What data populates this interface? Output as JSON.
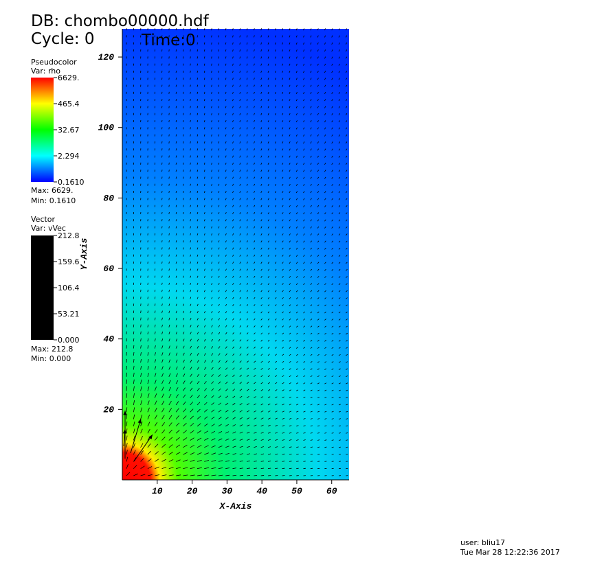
{
  "header": {
    "db": "DB: chombo00000.hdf",
    "cycle": "Cycle: 0",
    "time": "Time:0"
  },
  "chart_data": {
    "type": "pseudocolor",
    "xlabel": "X-Axis",
    "ylabel": "Y-Axis",
    "xlim": [
      0,
      64
    ],
    "ylim": [
      0,
      128
    ],
    "xticks": [
      10,
      20,
      30,
      40,
      50,
      60
    ],
    "yticks": [
      20,
      40,
      60,
      80,
      100,
      120
    ]
  },
  "legends": [
    {
      "title": "Pseudocolor",
      "var": "Var: rho",
      "ticks": [
        "6629.",
        "465.4",
        "32.67",
        "2.294",
        "0.1610"
      ],
      "max": "Max: 6629.",
      "min": "Min: 0.1610"
    },
    {
      "title": "Vector",
      "var": "Var: vVec",
      "ticks": [
        "212.8",
        "159.6",
        "106.4",
        "53.21",
        "0.000"
      ],
      "max": "Max: 212.8",
      "min": "Min: 0.000"
    }
  ],
  "footer": {
    "user": "user: bliu17",
    "date": "Tue Mar 28 12:22:36 2017"
  }
}
